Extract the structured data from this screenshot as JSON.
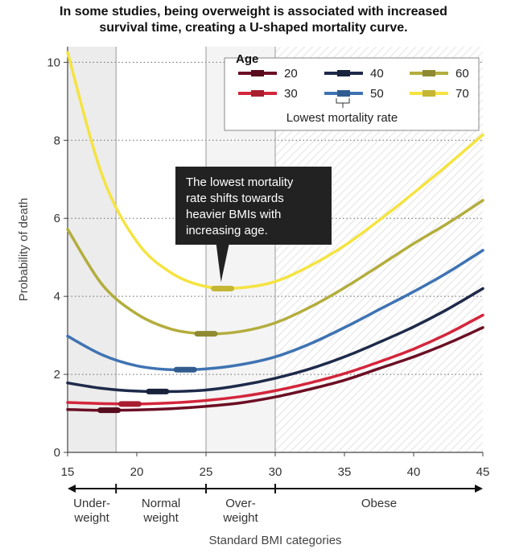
{
  "chart_data": {
    "type": "line",
    "title_lines": [
      "In some studies, being overweight is associated with increased",
      "survival time, creating a U-shaped mortality curve."
    ],
    "xlabel": "Standard BMI categories",
    "ylabel": "Probability of death",
    "xlim": [
      15,
      45
    ],
    "ylim": [
      0,
      10.4
    ],
    "x_ticks": [
      "15",
      "20",
      "25",
      "30",
      "35",
      "40",
      "45"
    ],
    "y_ticks": [
      "0",
      "2",
      "4",
      "6",
      "8",
      "10"
    ],
    "grid": "horizontal dotted",
    "category_boundaries": [
      18.5,
      25,
      30
    ],
    "categories": [
      {
        "lines": [
          "Under-",
          "weight"
        ],
        "from": 15,
        "to": 18.5
      },
      {
        "lines": [
          "Normal",
          "weight"
        ],
        "from": 18.5,
        "to": 25
      },
      {
        "lines": [
          "Over-",
          "weight"
        ],
        "from": 25,
        "to": 30
      },
      {
        "lines": [
          "Obese"
        ],
        "from": 30,
        "to": 45
      }
    ],
    "legend": {
      "title": "Age",
      "position": "top-right",
      "note": "Lowest mortality rate"
    },
    "series": [
      {
        "name": "20",
        "color": "#6b0f24",
        "x": [
          15,
          17.5,
          20,
          22.5,
          25,
          27.5,
          30,
          32.5,
          35,
          37.5,
          40,
          42.5,
          45
        ],
        "values": [
          1.1,
          1.08,
          1.09,
          1.12,
          1.18,
          1.27,
          1.42,
          1.62,
          1.85,
          2.15,
          2.45,
          2.8,
          3.2
        ],
        "min_x": 18,
        "min_y": 1.08
      },
      {
        "name": "30",
        "color": "#d3263b",
        "x": [
          15,
          17.5,
          20,
          22.5,
          25,
          27.5,
          30,
          32.5,
          35,
          37.5,
          40,
          42.5,
          45
        ],
        "values": [
          1.28,
          1.25,
          1.24,
          1.27,
          1.33,
          1.43,
          1.58,
          1.78,
          2.02,
          2.32,
          2.65,
          3.05,
          3.52
        ],
        "min_x": 19.5,
        "min_y": 1.24
      },
      {
        "name": "40",
        "color": "#1e2a4a",
        "x": [
          15,
          17.5,
          20,
          22.5,
          25,
          27.5,
          30,
          32.5,
          35,
          37.5,
          40,
          42.5,
          45
        ],
        "values": [
          1.78,
          1.64,
          1.57,
          1.56,
          1.6,
          1.72,
          1.9,
          2.14,
          2.45,
          2.82,
          3.22,
          3.68,
          4.2
        ],
        "min_x": 21.5,
        "min_y": 1.56
      },
      {
        "name": "50",
        "color": "#3f73b3",
        "x": [
          15,
          17.5,
          20,
          22.5,
          25,
          27.5,
          30,
          32.5,
          35,
          37.5,
          40,
          42.5,
          45
        ],
        "values": [
          2.98,
          2.5,
          2.22,
          2.12,
          2.14,
          2.25,
          2.45,
          2.78,
          3.2,
          3.66,
          4.12,
          4.62,
          5.18
        ],
        "min_x": 23.5,
        "min_y": 2.12
      },
      {
        "name": "60",
        "color": "#b3ad3d",
        "x": [
          15,
          17.5,
          20,
          22.5,
          25,
          27.5,
          30,
          32.5,
          35,
          37.5,
          40,
          42.5,
          45
        ],
        "values": [
          5.72,
          4.3,
          3.55,
          3.16,
          3.04,
          3.1,
          3.32,
          3.72,
          4.22,
          4.78,
          5.35,
          5.88,
          6.46
        ],
        "min_x": 25,
        "min_y": 3.04
      },
      {
        "name": "70",
        "color": "#f5e341",
        "x": [
          15,
          17.5,
          20,
          22.5,
          25,
          27.5,
          30,
          32.5,
          35,
          37.5,
          40,
          42.5,
          45
        ],
        "values": [
          10.25,
          7.1,
          5.4,
          4.6,
          4.25,
          4.22,
          4.38,
          4.78,
          5.3,
          5.95,
          6.65,
          7.38,
          8.14
        ],
        "min_x": 26.2,
        "min_y": 4.2
      }
    ],
    "annotation": {
      "lines": [
        "The lowest mortality",
        "rate shifts towards",
        "heavier BMIs with",
        "increasing age."
      ],
      "points_to_x": 26.2
    }
  }
}
